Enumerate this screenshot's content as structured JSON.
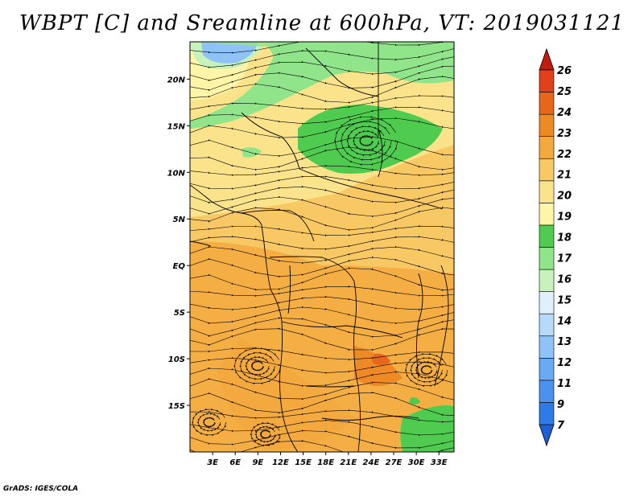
{
  "title": "WBPT [C] and Sreamline at 600hPa, VT: 2019031121",
  "credit": "GrADS: IGES/COLA",
  "map": {
    "lon_range": [
      0,
      35
    ],
    "lat_range": [
      -20,
      24
    ],
    "lon_ticks": [
      "3E",
      "6E",
      "9E",
      "12E",
      "15E",
      "18E",
      "21E",
      "24E",
      "27E",
      "30E",
      "33E"
    ],
    "lon_values": [
      3,
      6,
      9,
      12,
      15,
      18,
      21,
      24,
      27,
      30,
      33
    ],
    "lat_ticks": [
      "20N",
      "15N",
      "10N",
      "5N",
      "EQ",
      "5S",
      "10S",
      "15S"
    ],
    "lat_values": [
      20,
      15,
      10,
      5,
      0,
      -5,
      -10,
      -15
    ]
  },
  "colorbar": {
    "labels": [
      "7",
      "9",
      "11",
      "12",
      "13",
      "14",
      "15",
      "16",
      "17",
      "18",
      "19",
      "20",
      "21",
      "22",
      "23",
      "24",
      "25",
      "26"
    ],
    "colors": [
      "#1f5fd6",
      "#2e7ae6",
      "#4a92ef",
      "#6aaaf4",
      "#8fc3f7",
      "#b7dafa",
      "#dff0fb",
      "#c8f2bc",
      "#90e48a",
      "#4fcc4f",
      "#fff5a8",
      "#fbe38c",
      "#f8c865",
      "#f3a93e",
      "#ee8a25",
      "#e8661a",
      "#e0401a",
      "#c41a10"
    ]
  }
}
